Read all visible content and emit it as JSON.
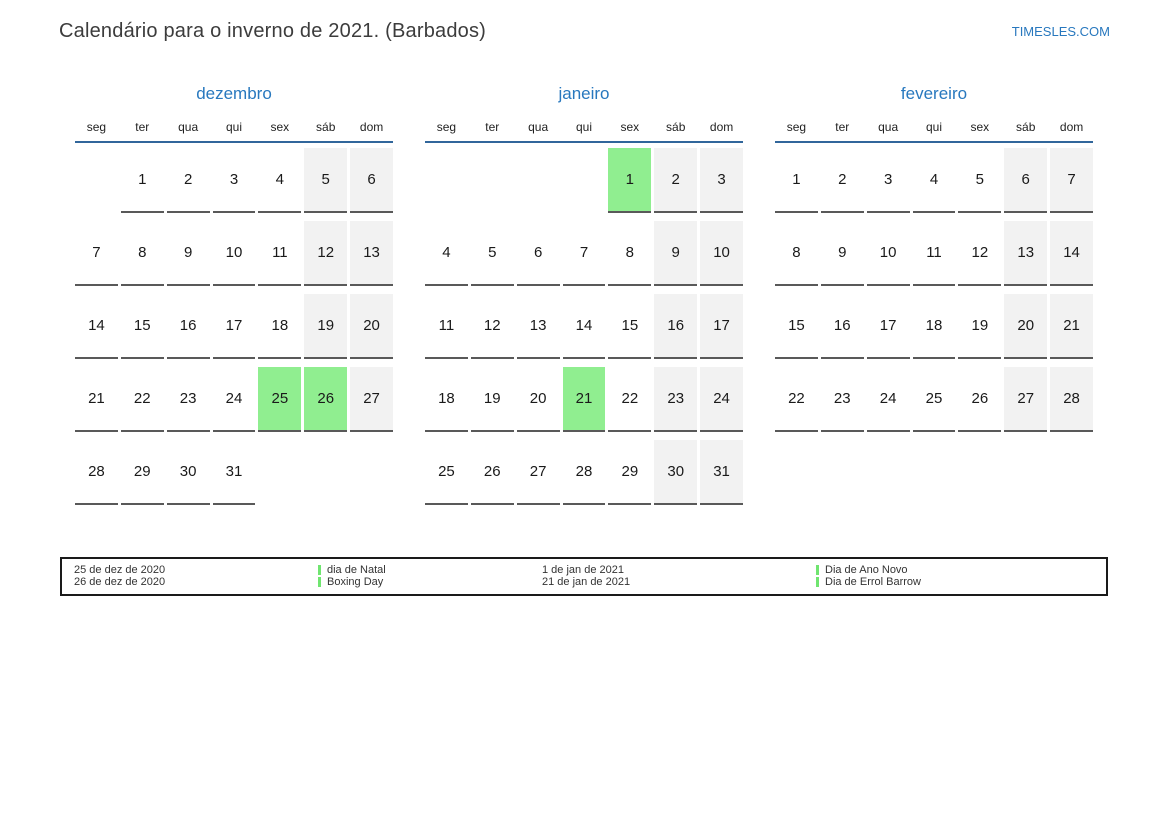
{
  "page": {
    "title": "Calendário para o inverno de 2021. (Barbados)",
    "site_link": "TIMESLES.COM"
  },
  "calendar": {
    "weekdays": [
      "seg",
      "ter",
      "qua",
      "qui",
      "sex",
      "sáb",
      "dom"
    ],
    "weekend_columns": [
      5,
      6
    ],
    "months": [
      {
        "name": "dezembro",
        "weeks": [
          [
            "",
            "1",
            "2",
            "3",
            "4",
            "5",
            "6"
          ],
          [
            "7",
            "8",
            "9",
            "10",
            "11",
            "12",
            "13"
          ],
          [
            "14",
            "15",
            "16",
            "17",
            "18",
            "19",
            "20"
          ],
          [
            "21",
            "22",
            "23",
            "24",
            "25",
            "26",
            "27"
          ],
          [
            "28",
            "29",
            "30",
            "31",
            "",
            "",
            ""
          ]
        ],
        "holiday_days": [
          "25",
          "26"
        ]
      },
      {
        "name": "janeiro",
        "weeks": [
          [
            "",
            "",
            "",
            "",
            "1",
            "2",
            "3"
          ],
          [
            "4",
            "5",
            "6",
            "7",
            "8",
            "9",
            "10"
          ],
          [
            "11",
            "12",
            "13",
            "14",
            "15",
            "16",
            "17"
          ],
          [
            "18",
            "19",
            "20",
            "21",
            "22",
            "23",
            "24"
          ],
          [
            "25",
            "26",
            "27",
            "28",
            "29",
            "30",
            "31"
          ]
        ],
        "holiday_days": [
          "1",
          "21"
        ]
      },
      {
        "name": "fevereiro",
        "weeks": [
          [
            "1",
            "2",
            "3",
            "4",
            "5",
            "6",
            "7"
          ],
          [
            "8",
            "9",
            "10",
            "11",
            "12",
            "13",
            "14"
          ],
          [
            "15",
            "16",
            "17",
            "18",
            "19",
            "20",
            "21"
          ],
          [
            "22",
            "23",
            "24",
            "25",
            "26",
            "27",
            "28"
          ]
        ],
        "holiday_days": []
      }
    ]
  },
  "legend": {
    "items": [
      {
        "date": "25 de dez de 2020",
        "name": "dia de Natal"
      },
      {
        "date": "26 de dez de 2020",
        "name": "Boxing Day"
      },
      {
        "date": "1 de jan de 2021",
        "name": "Dia de Ano Novo"
      },
      {
        "date": "21 de jan de 2021",
        "name": "Dia de Errol Barrow"
      }
    ]
  },
  "colors": {
    "accent_blue": "#2878be",
    "header_line_blue": "#31669b",
    "holiday_green": "#90ee90",
    "legend_marker_green": "#70e570",
    "weekend_gray": "#f2f2f2",
    "day_underline": "#595959"
  }
}
